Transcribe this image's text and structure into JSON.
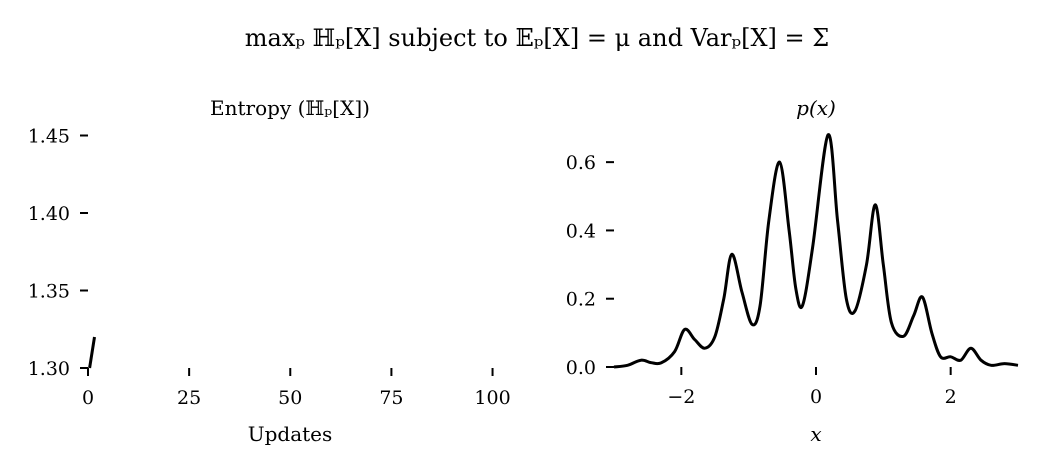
{
  "figure": {
    "suptitle": "maxₚ ℍₚ[X] subject to 𝔼ₚ[X] = μ and Varₚ[X] = Σ"
  },
  "chart_data": [
    {
      "type": "line",
      "title": "Entropy (ℍₚ[X])",
      "xlabel": "Updates",
      "ylabel": "",
      "xlim": [
        0,
        110
      ],
      "ylim": [
        1.3,
        1.46
      ],
      "xticks": [
        0,
        25,
        50,
        75,
        100
      ],
      "xtick_labels": [
        "0",
        "25",
        "50",
        "75",
        "100"
      ],
      "yticks": [
        1.3,
        1.35,
        1.4,
        1.45
      ],
      "ytick_labels": [
        "1.30",
        "1.35",
        "1.40",
        "1.45"
      ],
      "grid": false,
      "color": "#000000",
      "series": [
        {
          "x": [
            0.4,
            1.6
          ],
          "y": [
            1.3,
            1.32
          ]
        }
      ]
    },
    {
      "type": "line",
      "title": "p(x)",
      "xlabel": "x",
      "ylabel": "",
      "xlim": [
        -3,
        3
      ],
      "ylim": [
        0,
        0.7
      ],
      "xticks": [
        -2,
        0,
        2
      ],
      "xtick_labels": [
        "−2",
        "0",
        "2"
      ],
      "yticks": [
        0.0,
        0.2,
        0.4,
        0.6
      ],
      "ytick_labels": [
        "0.0",
        "0.2",
        "0.4",
        "0.6"
      ],
      "grid": false,
      "color": "#000000",
      "series": [
        {
          "x": [
            -3.0,
            -2.8,
            -2.6,
            -2.45,
            -2.3,
            -2.1,
            -1.95,
            -1.8,
            -1.65,
            -1.5,
            -1.37,
            -1.25,
            -1.1,
            -0.95,
            -0.83,
            -0.7,
            -0.54,
            -0.4,
            -0.3,
            -0.2,
            -0.05,
            0.18,
            0.32,
            0.45,
            0.58,
            0.75,
            0.88,
            1.0,
            1.12,
            1.3,
            1.45,
            1.58,
            1.72,
            1.85,
            2.0,
            2.15,
            2.3,
            2.45,
            2.6,
            2.8,
            3.0
          ],
          "y": [
            0.0,
            0.005,
            0.02,
            0.013,
            0.012,
            0.045,
            0.11,
            0.08,
            0.055,
            0.09,
            0.2,
            0.33,
            0.22,
            0.125,
            0.18,
            0.43,
            0.6,
            0.4,
            0.23,
            0.18,
            0.35,
            0.68,
            0.43,
            0.2,
            0.165,
            0.3,
            0.475,
            0.3,
            0.13,
            0.09,
            0.15,
            0.205,
            0.1,
            0.03,
            0.03,
            0.02,
            0.055,
            0.02,
            0.005,
            0.01,
            0.005
          ]
        }
      ]
    }
  ]
}
